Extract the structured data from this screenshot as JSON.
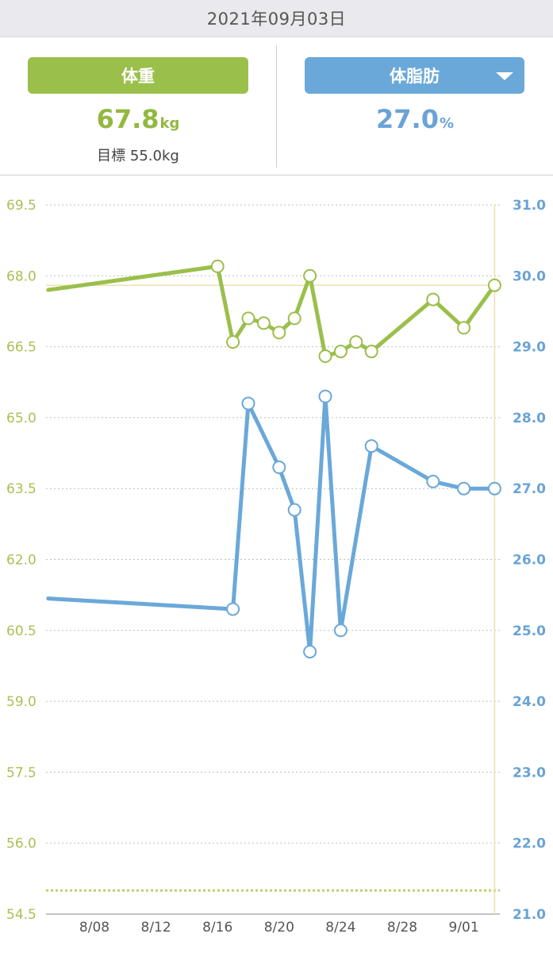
{
  "header": {
    "date": "2021年09月03日"
  },
  "weight": {
    "label": "体重",
    "value": "67.8",
    "unit": "kg",
    "goal_text": "目標 55.0kg"
  },
  "bodyfat": {
    "label": "体脂肪",
    "value": "27.0",
    "unit": "%",
    "dropdown_icon": "triangle-down-icon"
  },
  "colors": {
    "weight": "#9bbf4b",
    "bodyfat": "#6aa8d9",
    "grid": "#bdbdbd",
    "cursor": "#efe0b0"
  },
  "chart_data": {
    "type": "line",
    "x_ticks": [
      "8/08",
      "8/12",
      "8/16",
      "8/20",
      "8/24",
      "8/28",
      "9/01"
    ],
    "left_axis": {
      "ticks": [
        "69.5",
        "68.0",
        "66.5",
        "65.0",
        "63.5",
        "62.0",
        "60.5",
        "59.0",
        "57.5",
        "56.0",
        "54.5"
      ],
      "ylim": [
        54.5,
        69.5
      ]
    },
    "right_axis": {
      "ticks": [
        "31.0",
        "30.0",
        "29.0",
        "28.0",
        "27.0",
        "26.0",
        "25.0",
        "24.0",
        "23.0",
        "22.0",
        "21.0"
      ],
      "ylim": [
        21.0,
        31.0
      ]
    },
    "goal_weight": 55.0,
    "series": [
      {
        "axis": "left",
        "x": [
          "8/05",
          "8/16",
          "8/17",
          "8/18",
          "8/19",
          "8/20",
          "8/21",
          "8/22",
          "8/23",
          "8/24",
          "8/25",
          "8/26",
          "8/30",
          "9/01",
          "9/03"
        ],
        "values": [
          67.7,
          68.2,
          66.6,
          67.1,
          67.0,
          66.8,
          67.1,
          68.0,
          66.3,
          66.4,
          66.6,
          66.4,
          67.5,
          66.9,
          67.8
        ],
        "markers": [
          false,
          true,
          true,
          true,
          true,
          true,
          true,
          true,
          true,
          true,
          true,
          true,
          true,
          true,
          true
        ]
      },
      {
        "axis": "right",
        "x": [
          "8/05",
          "8/17",
          "8/18",
          "8/20",
          "8/21",
          "8/22",
          "8/23",
          "8/24",
          "8/26",
          "8/30",
          "9/01",
          "9/03"
        ],
        "values": [
          25.45,
          25.3,
          28.2,
          27.3,
          26.7,
          24.7,
          28.3,
          25.0,
          27.6,
          27.1,
          27.0,
          27.0
        ],
        "markers": [
          false,
          true,
          true,
          true,
          true,
          true,
          true,
          true,
          true,
          true,
          true,
          true
        ]
      }
    ]
  }
}
